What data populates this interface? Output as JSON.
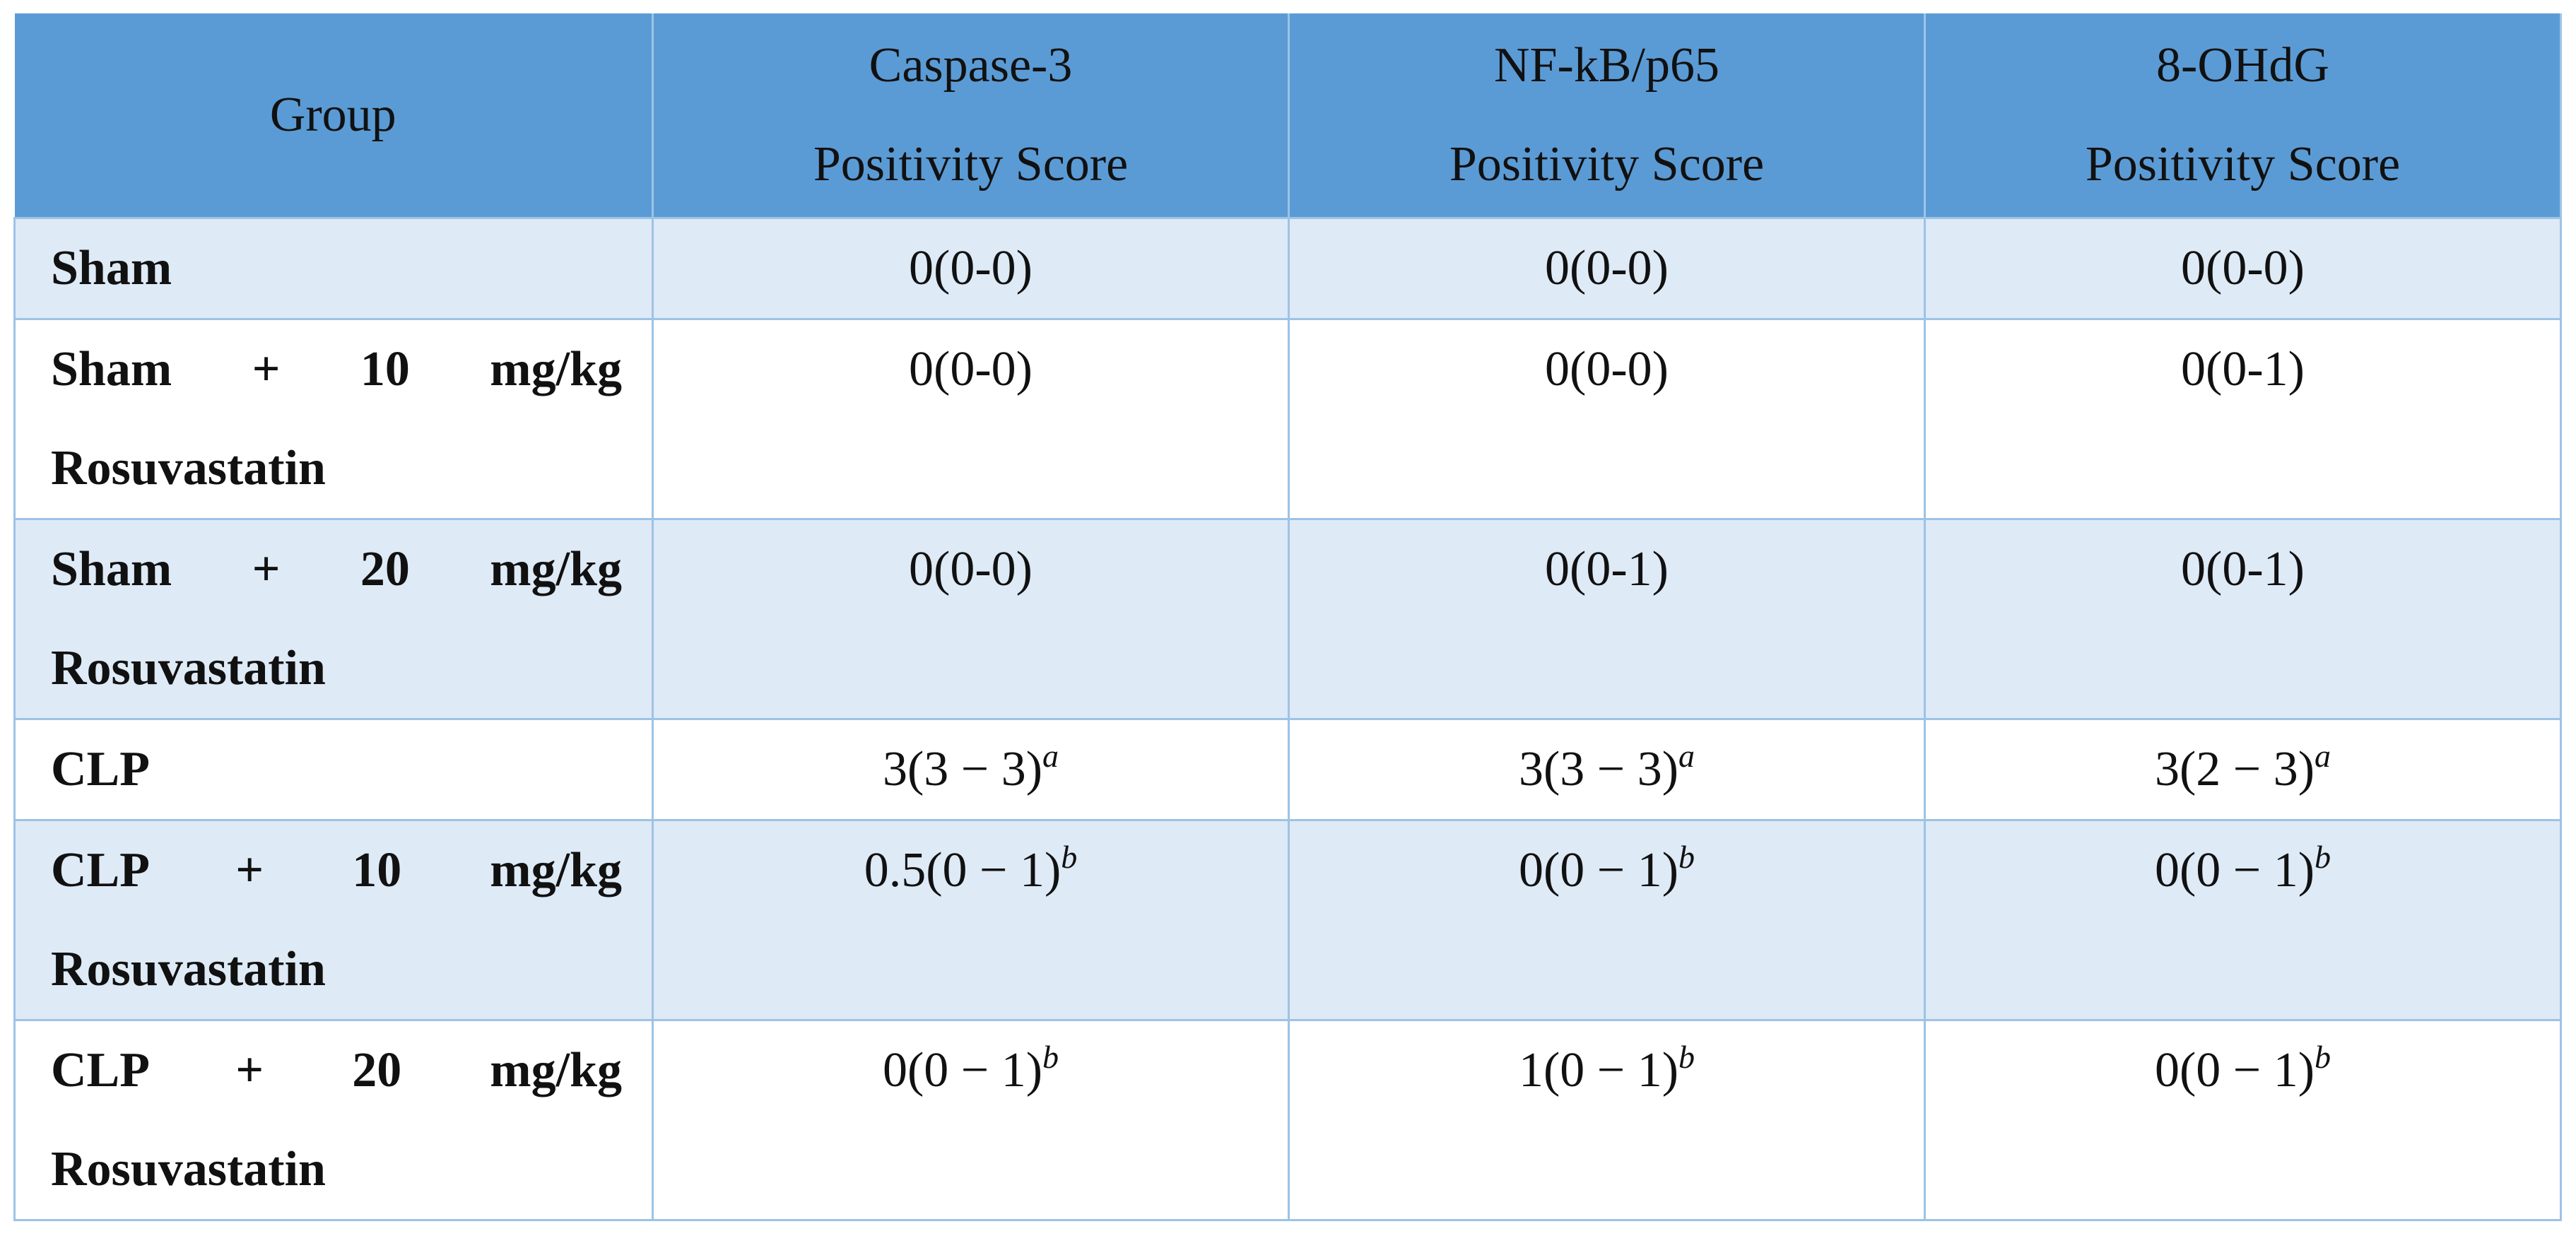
{
  "table": {
    "header": [
      [
        "Group"
      ],
      [
        "Caspase-3",
        "Positivity Score"
      ],
      [
        "NF-kB/p65",
        "Positivity Score"
      ],
      [
        "8-OHdG",
        "Positivity Score"
      ]
    ],
    "rows": [
      {
        "group": "Sham",
        "cells": [
          "0(0-0)",
          "0(0-0)",
          "0(0-0)"
        ]
      },
      {
        "group": "Sham + 10 mg/kg Rosuvastatin",
        "cells": [
          "0(0-0)",
          "0(0-0)",
          "0(0-1)"
        ]
      },
      {
        "group": "Sham + 20 mg/kg Rosuvastatin",
        "cells": [
          "0(0-0)",
          "0(0-1)",
          "0(0-1)"
        ]
      },
      {
        "group": "CLP",
        "cells": [
          {
            "text": "3(3 − 3)",
            "sup": "a"
          },
          {
            "text": "3(3 − 3)",
            "sup": "a"
          },
          {
            "text": "3(2 − 3)",
            "sup": "a"
          }
        ]
      },
      {
        "group": "CLP + 10 mg/kg Rosuvastatin",
        "cells": [
          {
            "text": "0.5(0 − 1)",
            "sup": "b"
          },
          {
            "text": "0(0 − 1)",
            "sup": "b"
          },
          {
            "text": "0(0 − 1)",
            "sup": "b"
          }
        ]
      },
      {
        "group": "CLP + 20 mg/kg Rosuvastatin",
        "cells": [
          {
            "text": "0(0 − 1)",
            "sup": "b"
          },
          {
            "text": "1(0 − 1)",
            "sup": "b"
          },
          {
            "text": "0(0 − 1)",
            "sup": "b"
          }
        ]
      }
    ]
  }
}
